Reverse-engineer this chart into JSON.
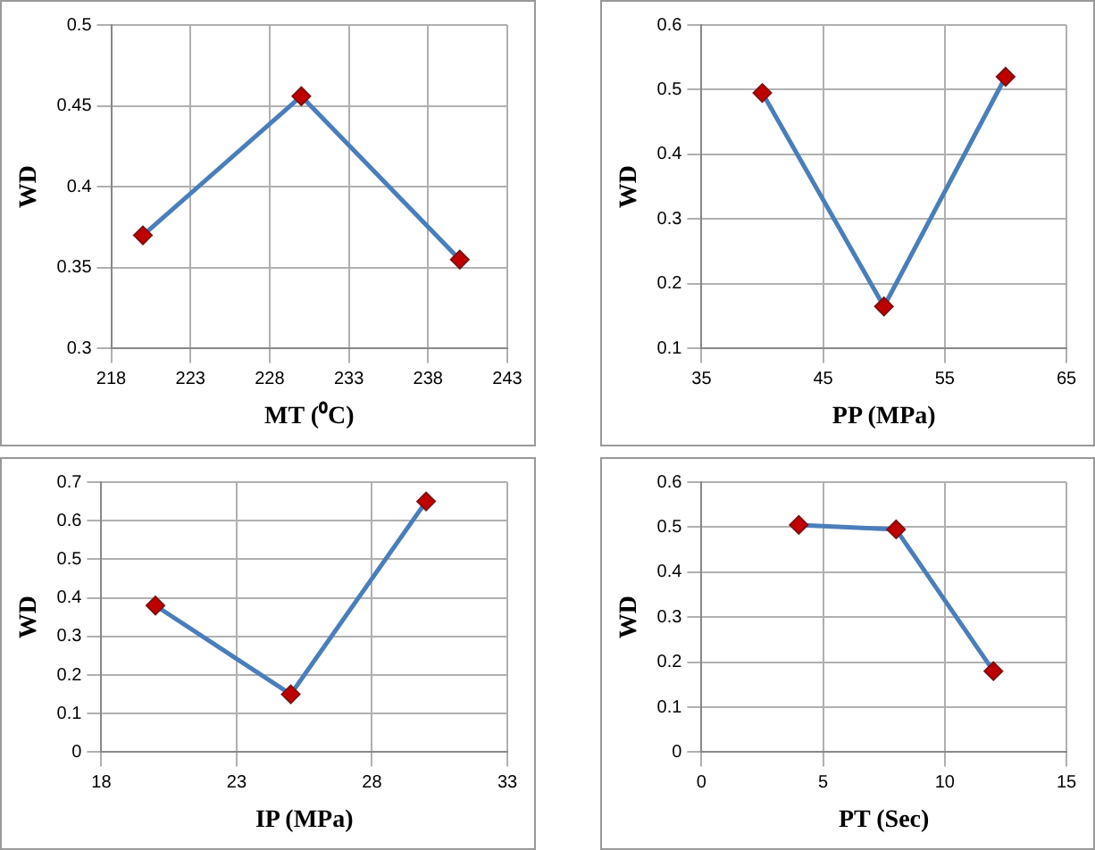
{
  "chart_data": [
    {
      "type": "line",
      "xlabel": "MT (⁰C)",
      "ylabel": "WD",
      "x": [
        220,
        230,
        240
      ],
      "values": [
        0.37,
        0.456,
        0.355
      ],
      "color": "#4a7ebb",
      "colors": [
        "#c00000",
        "#c00000",
        "#c00000"
      ],
      "xlim": [
        218,
        243
      ],
      "xticks": [
        218,
        223,
        228,
        233,
        238,
        243
      ],
      "ylim": [
        0.3,
        0.5
      ],
      "yticks": [
        0.3,
        0.35,
        0.4,
        0.45,
        0.5
      ],
      "grid": true,
      "marker": "diamond"
    },
    {
      "type": "line",
      "xlabel": "PP (MPa)",
      "ylabel": "WD",
      "x": [
        40,
        50,
        60
      ],
      "values": [
        0.495,
        0.165,
        0.52
      ],
      "color": "#4a7ebb",
      "colors": [
        "#c00000",
        "#c00000",
        "#c00000"
      ],
      "xlim": [
        35,
        65
      ],
      "xticks": [
        35,
        45,
        55,
        65
      ],
      "ylim": [
        0.1,
        0.6
      ],
      "yticks": [
        0.1,
        0.2,
        0.3,
        0.4,
        0.5,
        0.6
      ],
      "grid": true,
      "marker": "diamond"
    },
    {
      "type": "line",
      "xlabel": "IP (MPa)",
      "ylabel": "WD",
      "x": [
        20,
        25,
        30
      ],
      "values": [
        0.38,
        0.15,
        0.65
      ],
      "color": "#4a7ebb",
      "colors": [
        "#c00000",
        "#c00000",
        "#c00000"
      ],
      "xlim": [
        18,
        33
      ],
      "xticks": [
        18,
        23,
        28,
        33
      ],
      "ylim": [
        0,
        0.7
      ],
      "yticks": [
        0,
        0.1,
        0.2,
        0.3,
        0.4,
        0.5,
        0.6,
        0.7
      ],
      "grid": true,
      "marker": "diamond"
    },
    {
      "type": "line",
      "xlabel": "PT (Sec)",
      "ylabel": "WD",
      "x": [
        4,
        8,
        12
      ],
      "values": [
        0.505,
        0.495,
        0.18
      ],
      "color": "#4a7ebb",
      "colors": [
        "#c00000",
        "#c00000",
        "#c00000"
      ],
      "xlim": [
        0,
        15
      ],
      "xticks": [
        0,
        5,
        10,
        15
      ],
      "ylim": [
        0,
        0.6
      ],
      "yticks": [
        0,
        0.1,
        0.2,
        0.3,
        0.4,
        0.5,
        0.6
      ],
      "grid": true,
      "marker": "diamond"
    }
  ]
}
